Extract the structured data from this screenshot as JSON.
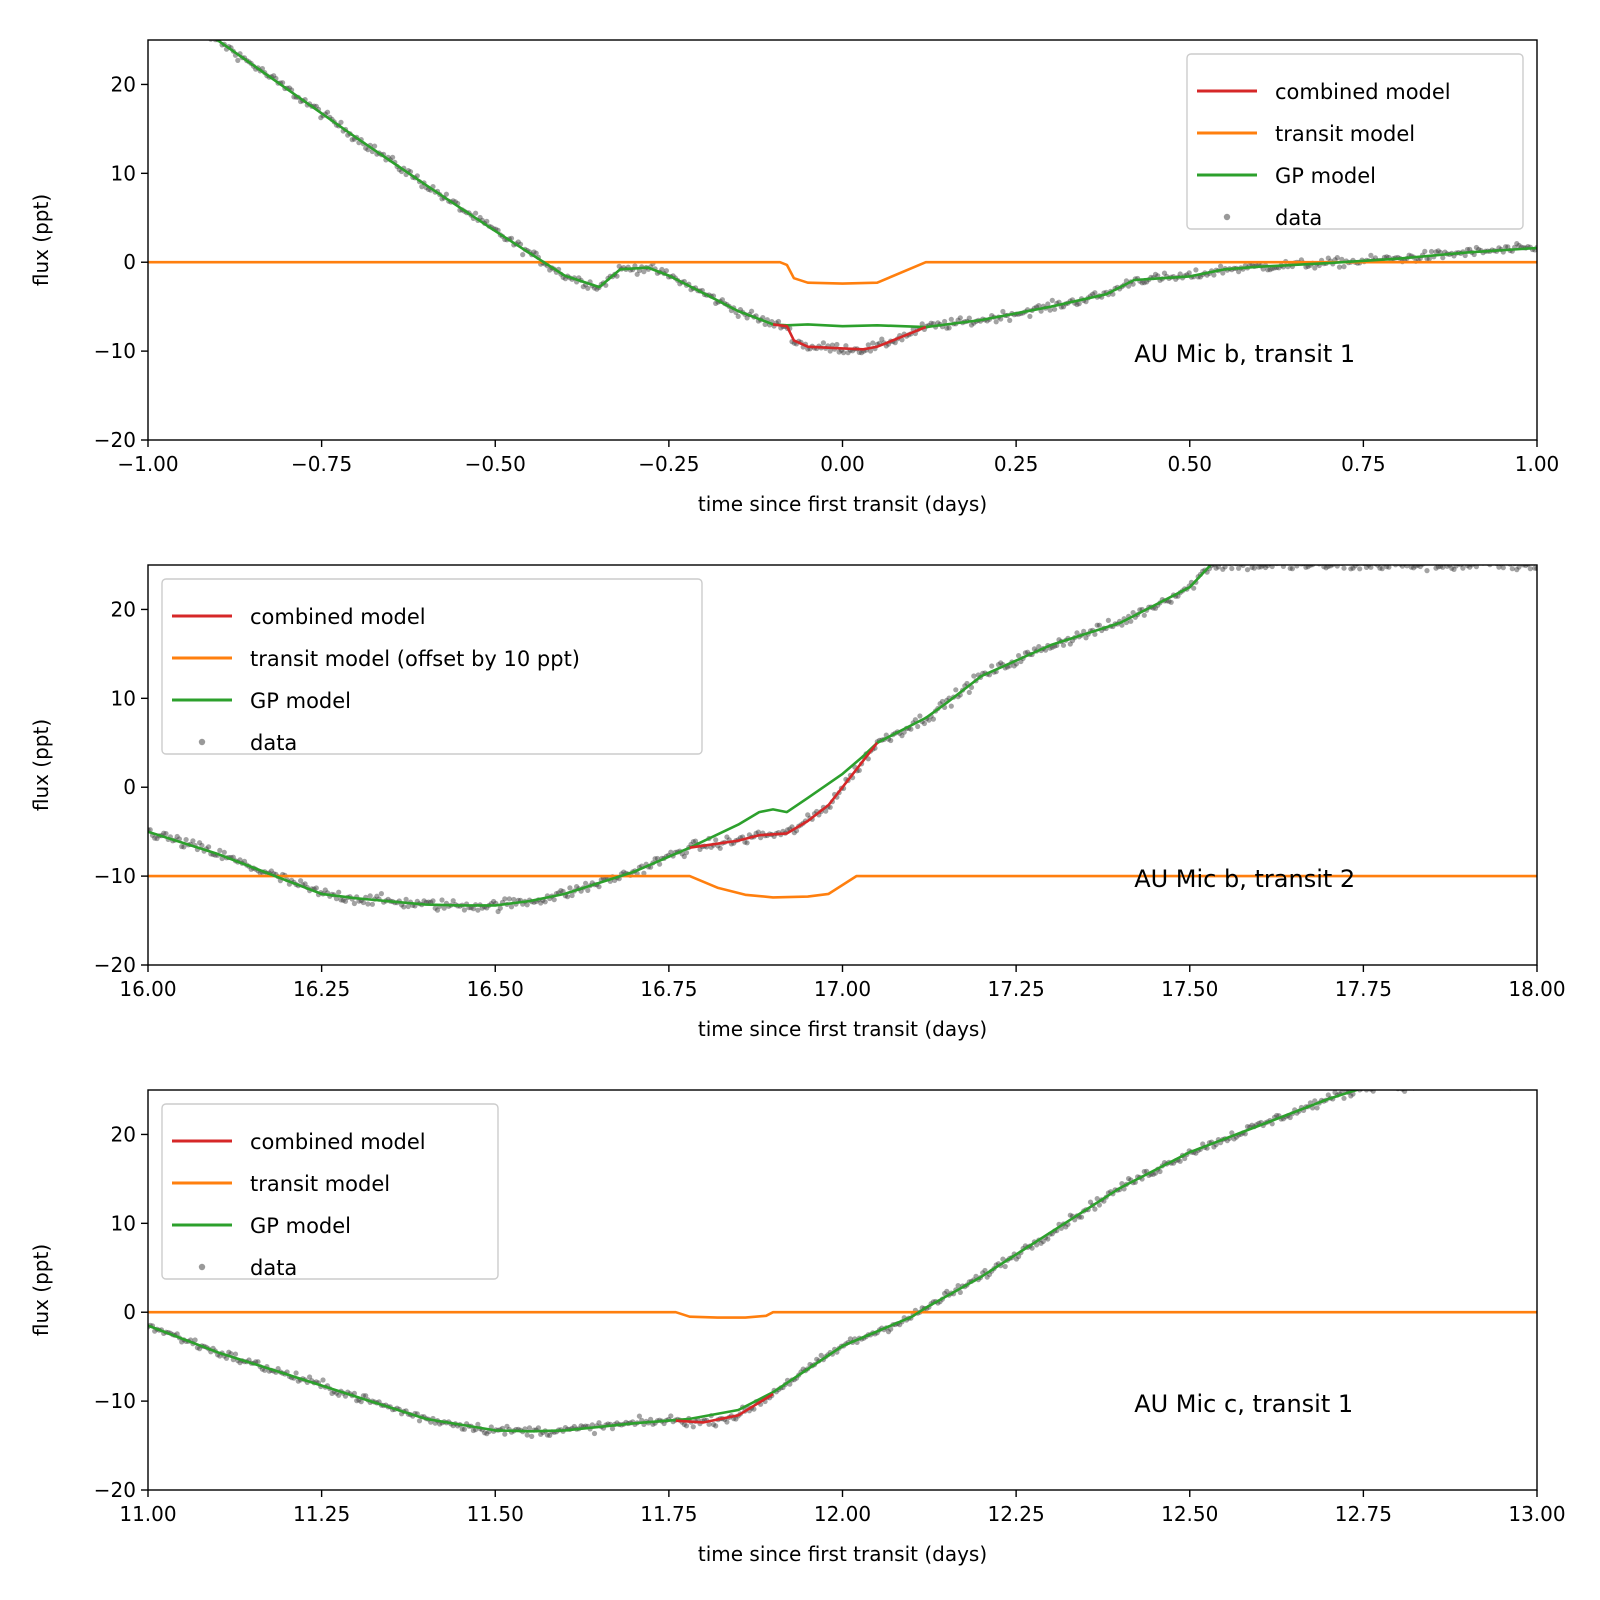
{
  "colors": {
    "combined": "#d62728",
    "transit": "#ff7f0e",
    "gp": "#2ca02c",
    "data": "#333333"
  },
  "chart_data": [
    {
      "type": "line",
      "xlabel": "time since first transit (days)",
      "ylabel": "flux (ppt)",
      "xlim": [
        -1.0,
        1.0
      ],
      "ylim": [
        -20,
        25
      ],
      "xticks": [
        "−1.00",
        "−0.75",
        "−0.50",
        "−0.25",
        "0.00",
        "0.25",
        "0.50",
        "0.75",
        "1.00"
      ],
      "xtick_values": [
        -1.0,
        -0.75,
        -0.5,
        -0.25,
        0.0,
        0.25,
        0.5,
        0.75,
        1.0
      ],
      "yticks": [
        "20",
        "10",
        "0",
        "−10",
        "−20"
      ],
      "ytick_values": [
        20,
        10,
        0,
        -10,
        -20
      ],
      "annotation": "AU Mic b, transit 1",
      "legend_position": "upper right",
      "legend": [
        "combined model",
        "transit model",
        "GP model",
        "data"
      ],
      "series": [
        {
          "name": "GP model",
          "color_key": "gp",
          "x": [
            -1.0,
            -0.9,
            -0.8,
            -0.7,
            -0.6,
            -0.5,
            -0.4,
            -0.35,
            -0.32,
            -0.28,
            -0.25,
            -0.2,
            -0.15,
            -0.1,
            -0.08,
            -0.05,
            0.0,
            0.05,
            0.12,
            0.2,
            0.3,
            0.38,
            0.42,
            0.5,
            0.55,
            0.6,
            0.7,
            0.8,
            0.9,
            1.0
          ],
          "y": [
            30,
            25,
            19.5,
            14,
            8.7,
            3.5,
            -1.5,
            -2.8,
            -0.8,
            -0.6,
            -1.5,
            -3.5,
            -5.5,
            -7.0,
            -7.1,
            -7.0,
            -7.2,
            -7.1,
            -7.3,
            -6.5,
            -5.0,
            -3.6,
            -2.0,
            -1.6,
            -0.8,
            -0.5,
            -0.1,
            0.4,
            1.1,
            1.6
          ]
        },
        {
          "name": "combined model",
          "color_key": "combined",
          "x": [
            -0.1,
            -0.08,
            -0.07,
            -0.05,
            0.0,
            0.03,
            0.05,
            0.12
          ],
          "y": [
            -7.0,
            -7.2,
            -8.8,
            -9.5,
            -9.7,
            -9.8,
            -9.5,
            -7.3
          ]
        },
        {
          "name": "transit model",
          "color_key": "transit",
          "x": [
            -1.0,
            -0.09,
            -0.08,
            -0.07,
            -0.05,
            0.0,
            0.05,
            0.12,
            1.0
          ],
          "y": [
            0,
            0,
            -0.3,
            -1.8,
            -2.3,
            -2.4,
            -2.3,
            0,
            0
          ]
        },
        {
          "name": "data",
          "color_key": "data",
          "scatter": true,
          "noise": 0.5,
          "follows": "GP model",
          "dip_follows": "combined model"
        }
      ]
    },
    {
      "type": "line",
      "xlabel": "time since first transit (days)",
      "ylabel": "flux (ppt)",
      "xlim": [
        16.0,
        18.0
      ],
      "ylim": [
        -20,
        25
      ],
      "xticks": [
        "16.00",
        "16.25",
        "16.50",
        "16.75",
        "17.00",
        "17.25",
        "17.50",
        "17.75",
        "18.00"
      ],
      "xtick_values": [
        16.0,
        16.25,
        16.5,
        16.75,
        17.0,
        17.25,
        17.5,
        17.75,
        18.0
      ],
      "yticks": [
        "20",
        "10",
        "0",
        "−10",
        "−20"
      ],
      "ytick_values": [
        20,
        10,
        0,
        -10,
        -20
      ],
      "annotation": "AU Mic b, transit 2",
      "legend_position": "upper left",
      "legend": [
        "combined model",
        "transit model (offset by 10 ppt)",
        "GP model",
        "data"
      ],
      "series": [
        {
          "name": "GP model",
          "color_key": "gp",
          "x": [
            16.0,
            16.1,
            16.2,
            16.25,
            16.3,
            16.4,
            16.45,
            16.5,
            16.55,
            16.6,
            16.7,
            16.78,
            16.85,
            16.88,
            16.9,
            16.92,
            16.95,
            17.0,
            17.03,
            17.05,
            17.12,
            17.15,
            17.2,
            17.3,
            17.4,
            17.5,
            17.53
          ],
          "y": [
            -5,
            -7.5,
            -10.5,
            -12,
            -12.5,
            -13.2,
            -13.3,
            -13.3,
            -12.8,
            -12.0,
            -9.5,
            -6.8,
            -4.2,
            -2.8,
            -2.5,
            -2.8,
            -1.2,
            1.5,
            3.5,
            5.0,
            7.8,
            9.5,
            12.5,
            16,
            18.5,
            22.5,
            25
          ]
        },
        {
          "name": "combined model",
          "color_key": "combined",
          "x": [
            16.78,
            16.85,
            16.88,
            16.92,
            16.95,
            16.98,
            17.02,
            17.05
          ],
          "y": [
            -6.8,
            -6.0,
            -5.4,
            -5.2,
            -3.8,
            -2.0,
            2.0,
            5.0
          ]
        },
        {
          "name": "transit model (offset by 10 ppt)",
          "color_key": "transit",
          "x": [
            16.0,
            16.78,
            16.82,
            16.86,
            16.9,
            16.95,
            16.98,
            17.02,
            18.0
          ],
          "y": [
            -10,
            -10,
            -11.3,
            -12.1,
            -12.4,
            -12.3,
            -12.0,
            -10,
            -10
          ]
        },
        {
          "name": "data",
          "color_key": "data",
          "scatter": true,
          "noise": 0.6,
          "follows": "GP model",
          "dip_follows": "combined model"
        }
      ]
    },
    {
      "type": "line",
      "xlabel": "time since first transit (days)",
      "ylabel": "flux (ppt)",
      "xlim": [
        11.0,
        13.0
      ],
      "ylim": [
        -20,
        25
      ],
      "xticks": [
        "11.00",
        "11.25",
        "11.50",
        "11.75",
        "12.00",
        "12.25",
        "12.50",
        "12.75",
        "13.00"
      ],
      "xtick_values": [
        11.0,
        11.25,
        11.5,
        11.75,
        12.0,
        12.25,
        12.5,
        12.75,
        13.0
      ],
      "yticks": [
        "20",
        "10",
        "0",
        "−10",
        "−20"
      ],
      "ytick_values": [
        20,
        10,
        0,
        -10,
        -20
      ],
      "annotation": "AU Mic c, transit 1",
      "legend_position": "upper left",
      "legend": [
        "combined model",
        "transit model",
        "GP model",
        "data"
      ],
      "series": [
        {
          "name": "GP model",
          "color_key": "gp",
          "x": [
            11.0,
            11.1,
            11.2,
            11.3,
            11.4,
            11.5,
            11.55,
            11.6,
            11.7,
            11.78,
            11.85,
            11.9,
            12.0,
            12.1,
            12.12,
            12.2,
            12.3,
            12.4,
            12.5,
            12.6,
            12.7,
            12.76
          ],
          "y": [
            -1.5,
            -4.5,
            -7.0,
            -9.5,
            -12,
            -13.3,
            -13.4,
            -13.3,
            -12.5,
            -12.0,
            -11.0,
            -9.0,
            -3.8,
            -0.5,
            0.5,
            4.0,
            9.0,
            14,
            18,
            21,
            24,
            25.5
          ]
        },
        {
          "name": "combined model",
          "color_key": "combined",
          "x": [
            11.76,
            11.8,
            11.85,
            11.9
          ],
          "y": [
            -12.2,
            -12.4,
            -11.6,
            -9.2
          ]
        },
        {
          "name": "transit model",
          "color_key": "transit",
          "x": [
            11.0,
            11.76,
            11.78,
            11.82,
            11.86,
            11.89,
            11.9,
            13.0
          ],
          "y": [
            0,
            0,
            -0.5,
            -0.6,
            -0.6,
            -0.4,
            0,
            0
          ]
        },
        {
          "name": "data",
          "color_key": "data",
          "scatter": true,
          "noise": 0.5,
          "follows": "GP model",
          "dip_follows": "combined model"
        }
      ]
    }
  ]
}
